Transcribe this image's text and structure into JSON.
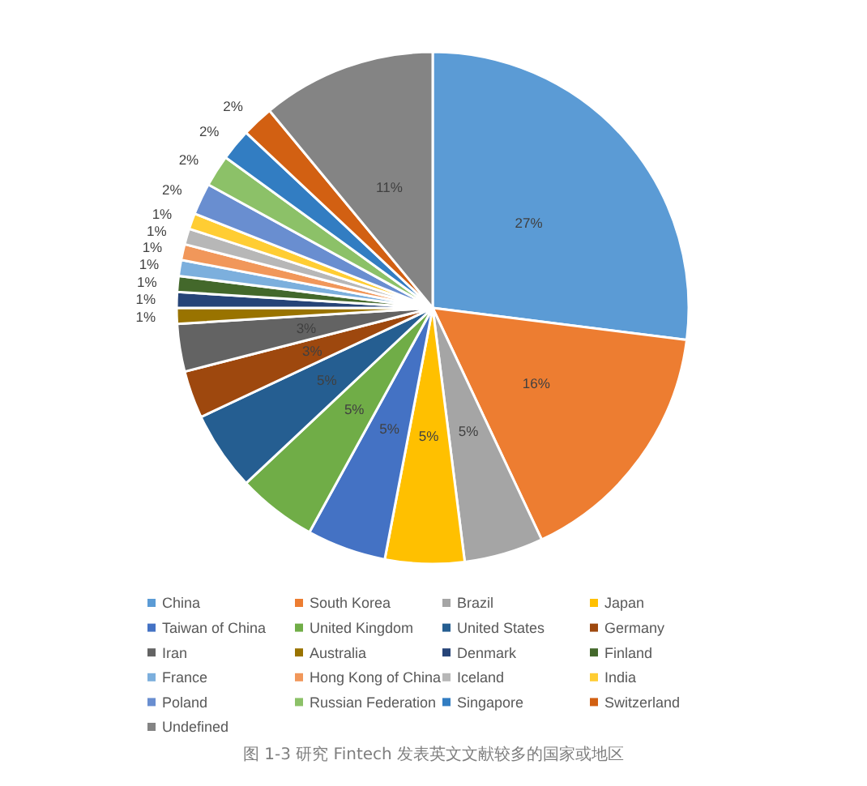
{
  "chart_data": {
    "type": "pie",
    "title": "图 1-3 研究 Fintech 发表英文文献较多的国家或地区",
    "categories": [
      "China",
      "South Korea",
      "Brazil",
      "Japan",
      "Taiwan of China",
      "United Kingdom",
      "United States",
      "Germany",
      "Iran",
      "Australia",
      "Denmark",
      "Finland",
      "France",
      "Hong Kong of China",
      "Iceland",
      "India",
      "Poland",
      "Russian Federation",
      "Singapore",
      "Switzerland",
      "Undefined"
    ],
    "values": [
      27,
      16,
      5,
      5,
      5,
      5,
      5,
      3,
      3,
      1,
      1,
      1,
      1,
      1,
      1,
      1,
      2,
      2,
      2,
      2,
      11
    ],
    "value_labels": [
      "27%",
      "16%",
      "5%",
      "5%",
      "5%",
      "5%",
      "5%",
      "3%",
      "3%",
      "1%",
      "1%",
      "1%",
      "1%",
      "1%",
      "1%",
      "1%",
      "2%",
      "2%",
      "2%",
      "2%",
      "11%"
    ],
    "colors": [
      "#5b9bd5",
      "#ed7d31",
      "#a5a5a5",
      "#ffc000",
      "#4472c4",
      "#70ad47",
      "#255e91",
      "#9e480e",
      "#636363",
      "#997300",
      "#264478",
      "#43682b",
      "#7cafdd",
      "#f1975a",
      "#b7b7b7",
      "#ffcd33",
      "#698ed0",
      "#8cc168",
      "#327dc2",
      "#d26012",
      "#848484"
    ],
    "legend": "bottom"
  }
}
